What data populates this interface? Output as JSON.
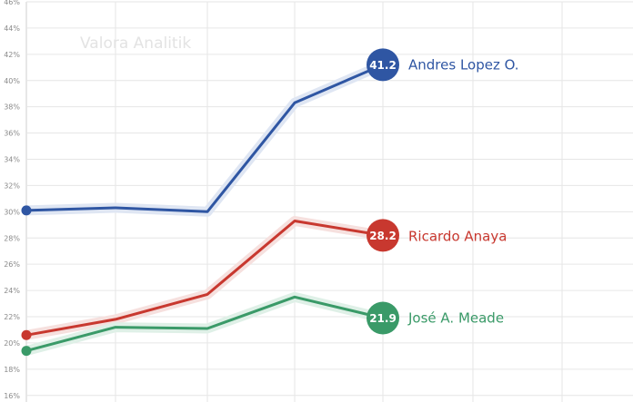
{
  "watermark": "Valora Analitik",
  "chart_data": {
    "type": "line",
    "title": "",
    "xlabel": "",
    "ylabel": "",
    "ylim": [
      15.5,
      46
    ],
    "y_ticks": [
      16,
      18,
      20,
      22,
      24,
      26,
      28,
      30,
      32,
      34,
      36,
      38,
      40,
      42,
      44,
      46
    ],
    "y_tick_labels": [
      "16%",
      "18%",
      "20%",
      "22%",
      "24%",
      "26%",
      "28%",
      "30%",
      "32%",
      "34%",
      "36%",
      "38%",
      "40%",
      "42%",
      "44%",
      "46%"
    ],
    "x": [
      1,
      2,
      3,
      4,
      5
    ],
    "grid": true,
    "series": [
      {
        "name": "Andres Lopez O.",
        "values": [
          30.1,
          30.3,
          30.0,
          38.3,
          41.2
        ],
        "end_label": "41.2",
        "color": "#2f56a3",
        "halo": "#dfe6f3"
      },
      {
        "name": "Ricardo Anaya",
        "values": [
          20.6,
          21.8,
          23.7,
          29.3,
          28.2
        ],
        "end_label": "28.2",
        "color": "#c8382f",
        "halo": "#f6e0de"
      },
      {
        "name": "José A. Meade",
        "values": [
          19.4,
          21.2,
          21.1,
          23.5,
          21.9
        ],
        "end_label": "21.9",
        "color": "#3a9a68",
        "halo": "#dff0e7"
      }
    ]
  }
}
